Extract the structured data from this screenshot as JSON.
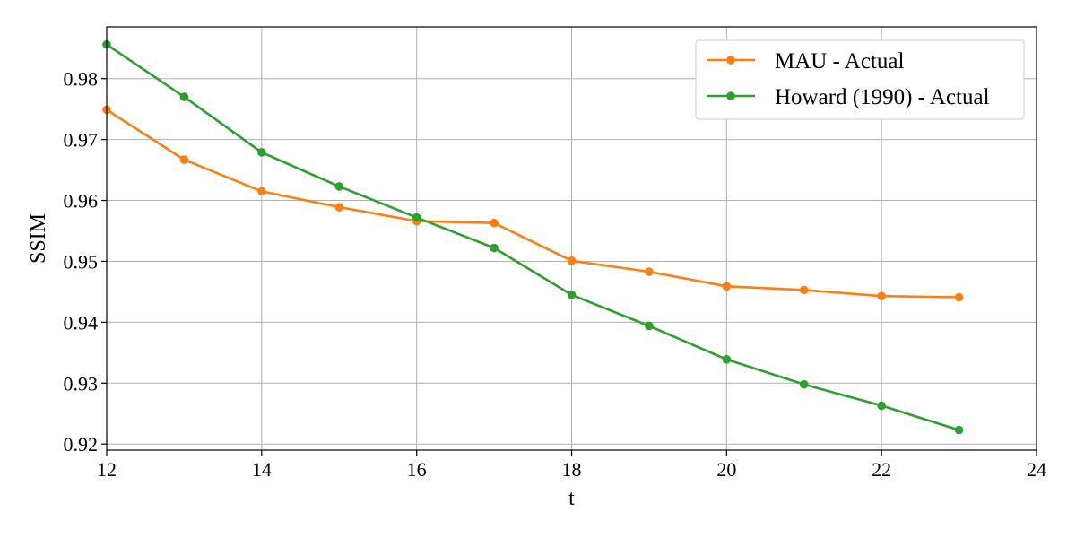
{
  "chart_data": {
    "type": "line",
    "xlabel": "t",
    "ylabel": "SSIM",
    "xlim": [
      12,
      24
    ],
    "ylim": [
      0.919,
      0.9885
    ],
    "xticks": [
      12,
      14,
      16,
      18,
      20,
      22,
      24
    ],
    "yticks": [
      0.92,
      0.93,
      0.94,
      0.95,
      0.96,
      0.97,
      0.98
    ],
    "grid": true,
    "legend_position": "top-right",
    "x": [
      12,
      13,
      14,
      15,
      16,
      17,
      18,
      19,
      20,
      21,
      22,
      23
    ],
    "series": [
      {
        "name": "MAU - Actual",
        "color": "#ff7f0e",
        "values": [
          0.9749,
          0.9667,
          0.9615,
          0.9589,
          0.9566,
          0.9563,
          0.9501,
          0.9483,
          0.9459,
          0.9453,
          0.9443,
          0.9441
        ]
      },
      {
        "name": "Howard (1990) - Actual",
        "color": "#2ca02c",
        "values": [
          0.9856,
          0.977,
          0.9679,
          0.9623,
          0.9572,
          0.9522,
          0.9445,
          0.9394,
          0.9339,
          0.9298,
          0.9263,
          0.9223
        ]
      }
    ]
  }
}
